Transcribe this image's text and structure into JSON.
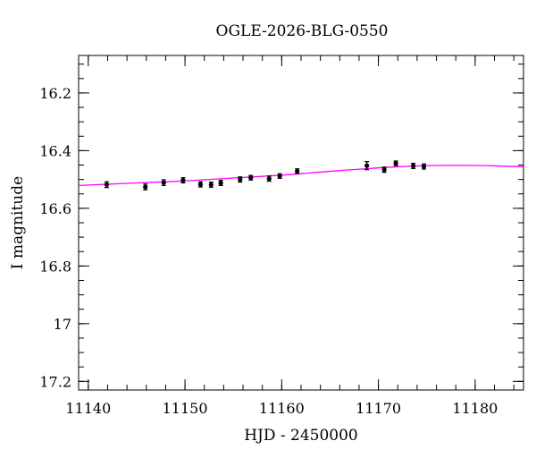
{
  "chart_data": {
    "type": "scatter",
    "title": "OGLE-2026-BLG-0550",
    "xlabel": "HJD - 2450000",
    "ylabel": "I magnitude",
    "xlim": [
      11139,
      11185
    ],
    "ylim": [
      17.23,
      16.07
    ],
    "y_inverted": true,
    "grid": false,
    "x_ticks": [
      {
        "value": 11140,
        "label": "11140"
      },
      {
        "value": 11150,
        "label": "11150"
      },
      {
        "value": 11160,
        "label": "11160"
      },
      {
        "value": 11170,
        "label": "11170"
      },
      {
        "value": 11180,
        "label": "11180"
      }
    ],
    "y_ticks": [
      {
        "value": 16.2,
        "label": "16.2"
      },
      {
        "value": 16.4,
        "label": "16.4"
      },
      {
        "value": 16.6,
        "label": "16.6"
      },
      {
        "value": 16.8,
        "label": "16.8"
      },
      {
        "value": 17.0,
        "label": "17"
      },
      {
        "value": 17.2,
        "label": "17.2"
      }
    ],
    "x_minor_step": 2,
    "y_minor_step": 0.05,
    "points": [
      {
        "x": 11141.9,
        "y": 16.518,
        "err": 0.01
      },
      {
        "x": 11145.9,
        "y": 16.526,
        "err": 0.01
      },
      {
        "x": 11147.8,
        "y": 16.511,
        "err": 0.01
      },
      {
        "x": 11149.8,
        "y": 16.503,
        "err": 0.009
      },
      {
        "x": 11151.6,
        "y": 16.517,
        "err": 0.009
      },
      {
        "x": 11152.7,
        "y": 16.518,
        "err": 0.009
      },
      {
        "x": 11153.7,
        "y": 16.512,
        "err": 0.009
      },
      {
        "x": 11155.7,
        "y": 16.5,
        "err": 0.009
      },
      {
        "x": 11156.8,
        "y": 16.494,
        "err": 0.008
      },
      {
        "x": 11158.7,
        "y": 16.497,
        "err": 0.009
      },
      {
        "x": 11159.8,
        "y": 16.488,
        "err": 0.008
      },
      {
        "x": 11161.6,
        "y": 16.471,
        "err": 0.008
      },
      {
        "x": 11168.8,
        "y": 16.452,
        "err": 0.014
      },
      {
        "x": 11170.6,
        "y": 16.466,
        "err": 0.009
      },
      {
        "x": 11171.8,
        "y": 16.444,
        "err": 0.008
      },
      {
        "x": 11173.6,
        "y": 16.453,
        "err": 0.009
      },
      {
        "x": 11174.7,
        "y": 16.455,
        "err": 0.009
      }
    ],
    "model_curve": {
      "color": "#ff00ff",
      "x": [
        11139,
        11145,
        11150,
        11155,
        11160,
        11163,
        11166,
        11169,
        11172,
        11175,
        11178,
        11181,
        11185
      ],
      "y": [
        16.521,
        16.512,
        16.505,
        16.495,
        16.485,
        16.477,
        16.469,
        16.462,
        16.456,
        16.452,
        16.451,
        16.452,
        16.456
      ]
    },
    "point_color": "#000000"
  }
}
